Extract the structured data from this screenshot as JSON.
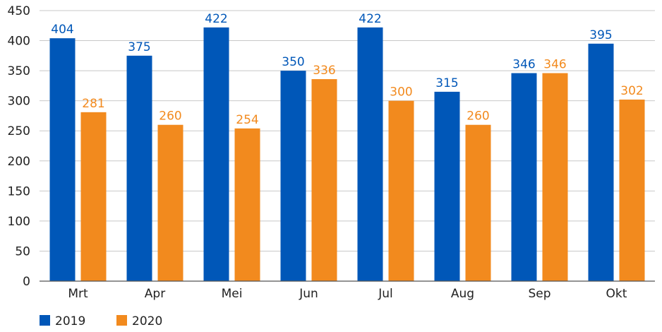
{
  "chart_data": {
    "type": "bar",
    "categories": [
      "Mrt",
      "Apr",
      "Mei",
      "Jun",
      "Jul",
      "Aug",
      "Sep",
      "Okt"
    ],
    "series": [
      {
        "name": "2019",
        "color": "#0057b8",
        "values": [
          404,
          375,
          422,
          350,
          422,
          315,
          346,
          395
        ]
      },
      {
        "name": "2020",
        "color": "#f28a1e",
        "values": [
          281,
          260,
          254,
          336,
          300,
          260,
          346,
          302
        ]
      }
    ],
    "title": "",
    "xlabel": "",
    "ylabel": "",
    "ylim": [
      0,
      450
    ],
    "yticks": [
      0,
      50,
      100,
      150,
      200,
      250,
      300,
      350,
      400,
      450
    ],
    "grid": true,
    "legend": "bottom-left"
  }
}
